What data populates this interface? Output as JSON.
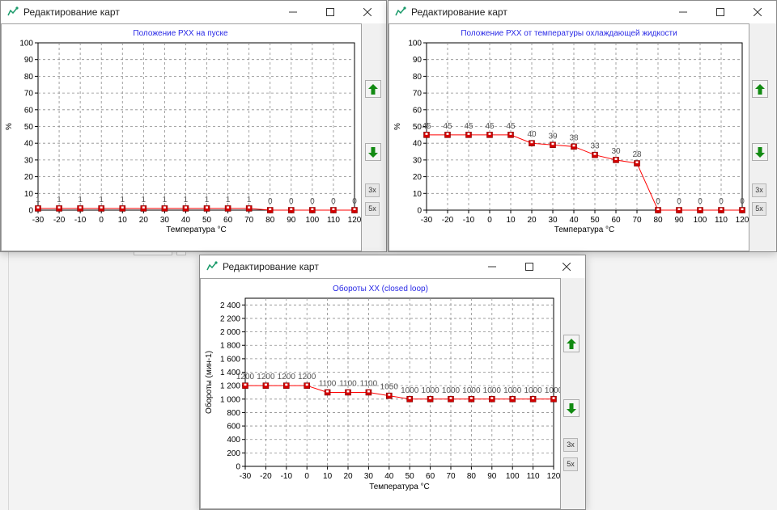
{
  "windows": [
    {
      "title": "Редактирование карт",
      "chart_data": {
        "type": "line",
        "title": "Положение РХХ на пуске",
        "xlabel": "Температура °С",
        "ylabel": "%",
        "x": [
          -30,
          -20,
          -10,
          0,
          10,
          20,
          30,
          40,
          50,
          60,
          70,
          80,
          90,
          100,
          110,
          120
        ],
        "values": [
          1,
          1,
          1,
          1,
          1,
          1,
          1,
          1,
          1,
          1,
          1,
          0,
          0,
          0,
          0,
          0
        ],
        "point_labels": [
          "1",
          "1",
          "1",
          "1",
          "1",
          "1",
          "1",
          "1",
          "1",
          "1",
          "1",
          "0",
          "0",
          "0",
          "0",
          "0"
        ],
        "ylim": [
          0,
          100
        ],
        "yticks": [
          0,
          10,
          20,
          30,
          40,
          50,
          60,
          70,
          80,
          90,
          100
        ],
        "ytick_labels": [
          "0",
          "10",
          "20",
          "30",
          "40",
          "50",
          "60",
          "70",
          "80",
          "90",
          "100"
        ],
        "xtick_labels": [
          "-30",
          "-20",
          "-10",
          "0",
          "10",
          "20",
          "30",
          "40",
          "50",
          "60",
          "70",
          "80",
          "90",
          "100",
          "110",
          "120"
        ],
        "grid": true,
        "line_color": "#ff0000",
        "marker_color": "#d40000"
      }
    },
    {
      "title": "Редактирование карт",
      "chart_data": {
        "type": "line",
        "title": "Положение РХХ от температуры охлаждающей жидкости",
        "xlabel": "Температура °С",
        "ylabel": "%",
        "x": [
          -30,
          -20,
          -10,
          0,
          10,
          20,
          30,
          40,
          50,
          60,
          70,
          80,
          90,
          100,
          110,
          120
        ],
        "values": [
          45,
          45,
          45,
          45,
          45,
          40,
          39,
          38,
          33,
          30,
          28,
          0,
          0,
          0,
          0,
          0
        ],
        "point_labels": [
          "45",
          "45",
          "45",
          "45",
          "45",
          "40",
          "39",
          "38",
          "33",
          "30",
          "28",
          "0",
          "0",
          "0",
          "0",
          "0"
        ],
        "ylim": [
          0,
          100
        ],
        "yticks": [
          0,
          10,
          20,
          30,
          40,
          50,
          60,
          70,
          80,
          90,
          100
        ],
        "ytick_labels": [
          "0",
          "10",
          "20",
          "30",
          "40",
          "50",
          "60",
          "70",
          "80",
          "90",
          "100"
        ],
        "xtick_labels": [
          "-30",
          "-20",
          "-10",
          "0",
          "10",
          "20",
          "30",
          "40",
          "50",
          "60",
          "70",
          "80",
          "90",
          "100",
          "110",
          "120"
        ],
        "grid": true,
        "line_color": "#ff0000",
        "marker_color": "#d40000"
      }
    },
    {
      "title": "Редактирование карт",
      "chart_data": {
        "type": "line",
        "title": "Обороты ХХ (closed loop)",
        "xlabel": "Температура °С",
        "ylabel": "Обороты (мин-1)",
        "x": [
          -30,
          -20,
          -10,
          0,
          10,
          20,
          30,
          40,
          50,
          60,
          70,
          80,
          90,
          100,
          110,
          120
        ],
        "values": [
          1200,
          1200,
          1200,
          1200,
          1100,
          1100,
          1100,
          1050,
          1000,
          1000,
          1000,
          1000,
          1000,
          1000,
          1000,
          1000
        ],
        "point_labels": [
          "1200",
          "1200",
          "1200",
          "1200",
          "1100",
          "1100",
          "1100",
          "1050",
          "1000",
          "1000",
          "1000",
          "1000",
          "1000",
          "1000",
          "1000",
          "1000"
        ],
        "ylim": [
          0,
          2500
        ],
        "yticks": [
          0,
          200,
          400,
          600,
          800,
          1000,
          1200,
          1400,
          1600,
          1800,
          2000,
          2200,
          2400
        ],
        "ytick_labels": [
          "0",
          "200",
          "400",
          "600",
          "800",
          "1 000",
          "1 200",
          "1 400",
          "1 600",
          "1 800",
          "2 000",
          "2 200",
          "2 400"
        ],
        "xtick_labels": [
          "-30",
          "-20",
          "-10",
          "0",
          "10",
          "20",
          "30",
          "40",
          "50",
          "60",
          "70",
          "80",
          "90",
          "100",
          "110",
          "120"
        ],
        "grid": true,
        "line_color": "#ff0000",
        "marker_color": "#d40000"
      }
    }
  ],
  "side_buttons": {
    "up_icon": "arrow-up-icon",
    "down_icon": "arrow-down-icon",
    "zoom3_label": "3x",
    "zoom5_label": "5x"
  },
  "colors": {
    "arrow_green": "#128a12",
    "title_blue": "#2a2ae6"
  }
}
